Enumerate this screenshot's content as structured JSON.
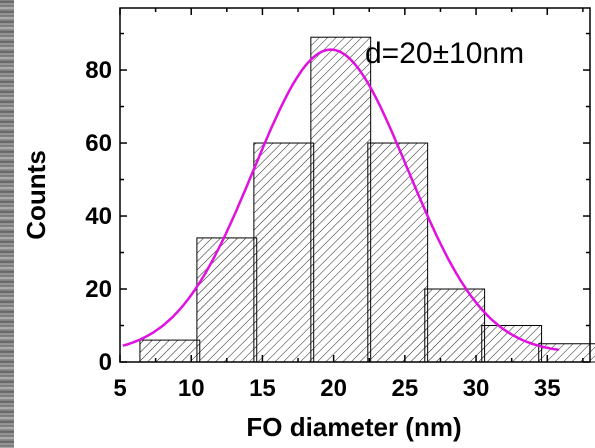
{
  "chart_data": {
    "type": "bar",
    "title": "",
    "xlabel": "FO diameter (nm)",
    "ylabel": "Counts",
    "annotation": "d=20±10nm",
    "xlim": [
      5,
      38
    ],
    "ylim": [
      0,
      97
    ],
    "x_ticks": [
      5,
      10,
      15,
      20,
      25,
      30,
      35
    ],
    "y_ticks": [
      0,
      20,
      40,
      60,
      80
    ],
    "bar_width": 4.2,
    "x": [
      8.5,
      12.5,
      16.5,
      20.5,
      24.5,
      28.5,
      32.5,
      36.5
    ],
    "values": [
      6,
      34,
      60,
      89,
      60,
      20,
      10,
      5
    ],
    "bar_fill": "hatched",
    "bar_color": "#000000",
    "fit": {
      "type": "gaussian",
      "color": "#e010e0",
      "amplitude": 83.3,
      "center": 19.8,
      "sigma": 5.4,
      "offset": 2.3,
      "x_range": [
        5.2,
        35.8
      ]
    }
  }
}
